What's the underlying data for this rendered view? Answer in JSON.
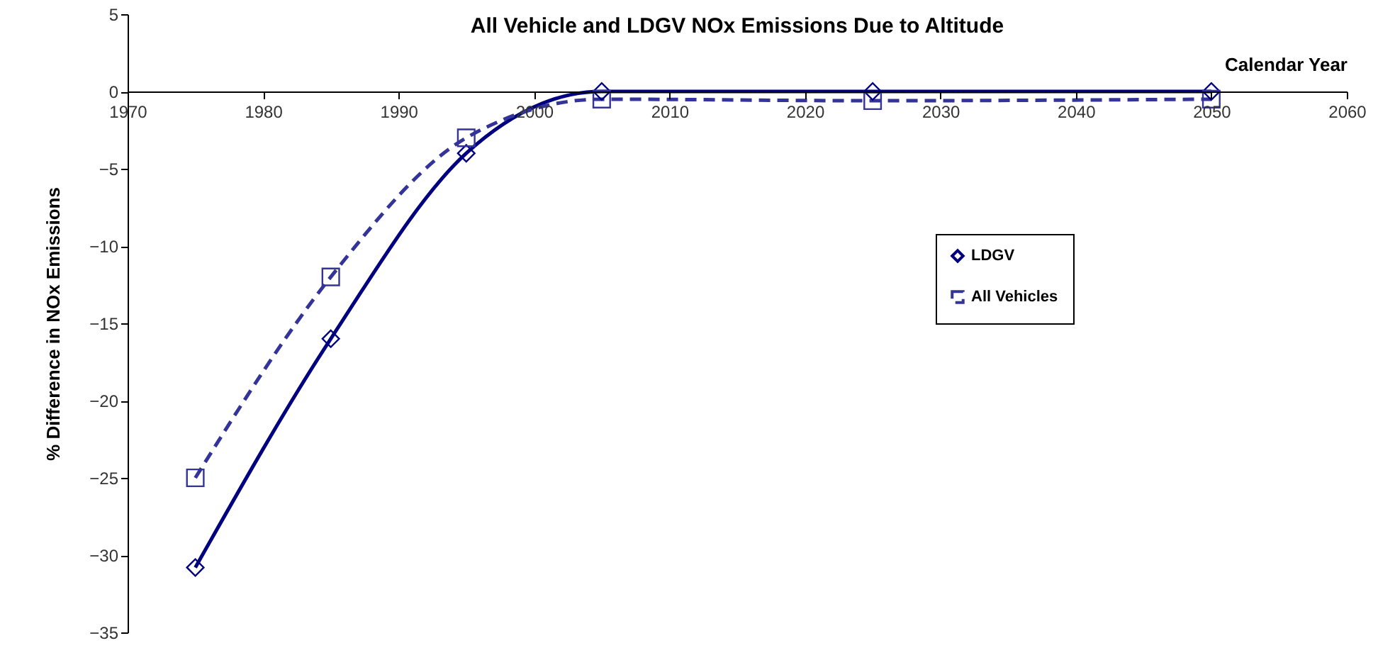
{
  "chart_data": {
    "type": "line",
    "title": "All Vehicle and LDGV NOx Emissions Due to Altitude",
    "xlabel": "Calendar Year",
    "ylabel": "% Difference in NOx Emissions",
    "x": [
      1975,
      1985,
      1995,
      2005,
      2025,
      2050
    ],
    "series": [
      {
        "name": "LDGV",
        "color": "#000080",
        "marker": "diamond",
        "line_style": "solid",
        "values": [
          -30.8,
          -16,
          -4,
          0,
          0,
          0
        ]
      },
      {
        "name": "All Vehicles",
        "color": "#333399",
        "marker": "square",
        "line_style": "dashed",
        "values": [
          -25,
          -12,
          -3,
          -0.5,
          -0.6,
          -0.5
        ]
      }
    ],
    "xlim": [
      1970,
      2060
    ],
    "xticks": [
      1970,
      1980,
      1990,
      2000,
      2010,
      2020,
      2030,
      2040,
      2050,
      2060
    ],
    "ylim": [
      -35,
      5
    ],
    "yticks": [
      5,
      0,
      -5,
      -10,
      -15,
      -20,
      -25,
      -30,
      -35
    ],
    "legend": "right"
  }
}
